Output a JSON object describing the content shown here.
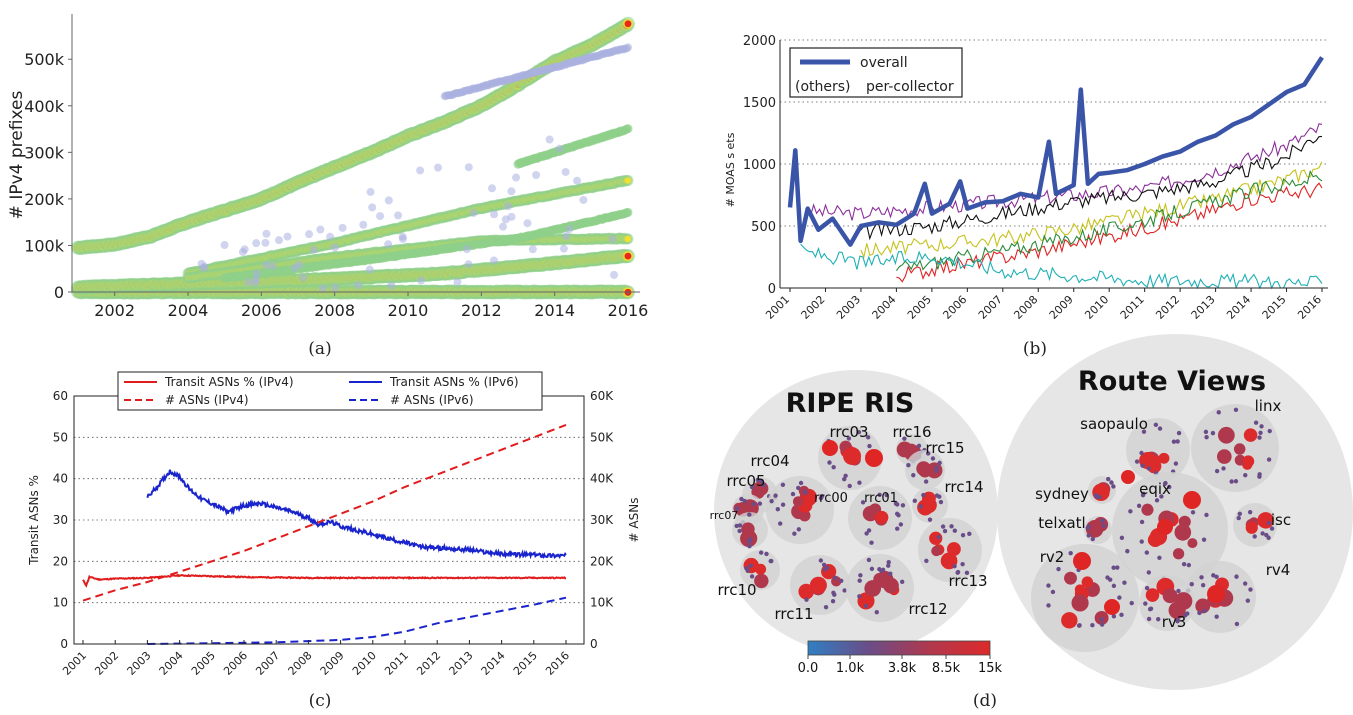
{
  "captions": [
    "(a)",
    "(b)",
    "(c)",
    "(d)"
  ],
  "chart_data": [
    {
      "panel": "(a)",
      "type": "scatter",
      "ylabel": "# IPv4 prefixes",
      "x_ticks": [
        "2002",
        "2004",
        "2006",
        "2008",
        "2010",
        "2012",
        "2014",
        "2016"
      ],
      "y_ticks": [
        "0",
        "100k",
        "200k",
        "300k",
        "400k",
        "500k"
      ],
      "xlim": [
        2001,
        2016
      ],
      "ylim": [
        0,
        580000
      ],
      "colors": {
        "high": "#e8281b",
        "mid": "#f7e02a",
        "low": "#8fd08a",
        "sparse": "#aab0e0"
      },
      "series": [
        {
          "values": [
            [
              2001,
              95000
            ],
            [
              2002,
              102000
            ],
            [
              2003,
              120000
            ],
            [
              2004,
              150000
            ],
            [
              2005,
              175000
            ],
            [
              2006,
              200000
            ],
            [
              2007,
              235000
            ],
            [
              2008,
              268000
            ],
            [
              2009,
              300000
            ],
            [
              2010,
              335000
            ],
            [
              2011,
              365000
            ],
            [
              2012,
              400000
            ],
            [
              2013,
              445000
            ],
            [
              2014,
              495000
            ],
            [
              2015,
              530000
            ],
            [
              2016,
              575000
            ]
          ],
          "density": "high"
        },
        {
          "values": [
            [
              2001,
              0
            ],
            [
              2016,
              0
            ]
          ],
          "density": "high"
        },
        {
          "values": [
            [
              2001,
              10000
            ],
            [
              2004,
              18000
            ],
            [
              2008,
              28000
            ],
            [
              2011,
              40000
            ],
            [
              2014,
              62000
            ],
            [
              2016,
              78000
            ]
          ],
          "density": "high"
        },
        {
          "values": [
            [
              2004,
              40000
            ],
            [
              2008,
              105000
            ],
            [
              2012,
              180000
            ],
            [
              2016,
              240000
            ]
          ],
          "density": "mid"
        },
        {
          "values": [
            [
              2004,
              30000
            ],
            [
              2008,
              75000
            ],
            [
              2012,
              110000
            ],
            [
              2016,
              115000
            ]
          ],
          "density": "mid"
        },
        {
          "values": [
            [
              2005,
              30000
            ],
            [
              2009,
              70000
            ],
            [
              2013,
              115000
            ],
            [
              2016,
              170000
            ]
          ],
          "density": "low"
        },
        {
          "values": [
            [
              2013,
              275000
            ],
            [
              2016,
              350000
            ]
          ],
          "density": "low"
        },
        {
          "values": [
            [
              2011,
              420000
            ],
            [
              2016,
              525000
            ]
          ],
          "density": "sparse"
        }
      ]
    },
    {
      "panel": "(b)",
      "type": "line",
      "ylabel": "# MOAS s ets",
      "x_ticks": [
        "2001",
        "2002",
        "2003",
        "2004",
        "2005",
        "2006",
        "2007",
        "2008",
        "2009",
        "2010",
        "2011",
        "2012",
        "2013",
        "2014",
        "2015",
        "2016"
      ],
      "y_ticks": [
        "0",
        "500",
        "1000",
        "1500",
        "2000"
      ],
      "xlim": [
        2001,
        2016
      ],
      "ylim": [
        0,
        2000
      ],
      "grid": true,
      "legend": {
        "position": "top-left",
        "entries": [
          {
            "key": "",
            "label": "overall"
          },
          {
            "key": "(others)",
            "label": "per-collector"
          }
        ]
      },
      "series": [
        {
          "name": "overall",
          "color": "#3a55a8",
          "values": [
            [
              2001.0,
              650
            ],
            [
              2001.15,
              1110
            ],
            [
              2001.3,
              380
            ],
            [
              2001.5,
              640
            ],
            [
              2001.8,
              470
            ],
            [
              2002.2,
              560
            ],
            [
              2002.7,
              350
            ],
            [
              2003.0,
              500
            ],
            [
              2003.5,
              530
            ],
            [
              2004.0,
              510
            ],
            [
              2004.5,
              600
            ],
            [
              2004.8,
              840
            ],
            [
              2005.0,
              600
            ],
            [
              2005.5,
              680
            ],
            [
              2005.8,
              860
            ],
            [
              2006.0,
              640
            ],
            [
              2006.5,
              690
            ],
            [
              2007.0,
              700
            ],
            [
              2007.5,
              760
            ],
            [
              2008.0,
              730
            ],
            [
              2008.3,
              1180
            ],
            [
              2008.5,
              760
            ],
            [
              2009.0,
              830
            ],
            [
              2009.2,
              1600
            ],
            [
              2009.4,
              840
            ],
            [
              2009.7,
              920
            ],
            [
              2010.0,
              930
            ],
            [
              2010.5,
              950
            ],
            [
              2011.0,
              1000
            ],
            [
              2011.5,
              1060
            ],
            [
              2012.0,
              1100
            ],
            [
              2012.5,
              1180
            ],
            [
              2013.0,
              1230
            ],
            [
              2013.5,
              1320
            ],
            [
              2014.0,
              1380
            ],
            [
              2014.5,
              1480
            ],
            [
              2015.0,
              1580
            ],
            [
              2015.5,
              1640
            ],
            [
              2016.0,
              1860
            ]
          ]
        },
        {
          "color": "#8b2f9a",
          "values": [
            [
              2001.5,
              620
            ],
            [
              2003,
              600
            ],
            [
              2005,
              650
            ],
            [
              2007,
              700
            ],
            [
              2009,
              750
            ],
            [
              2011,
              800
            ],
            [
              2013,
              950
            ],
            [
              2015,
              1150
            ],
            [
              2016,
              1300
            ]
          ]
        },
        {
          "color": "#111111",
          "values": [
            [
              2003,
              450
            ],
            [
              2005,
              500
            ],
            [
              2007,
              600
            ],
            [
              2009,
              700
            ],
            [
              2011,
              760
            ],
            [
              2013,
              860
            ],
            [
              2015,
              1060
            ],
            [
              2016,
              1260
            ]
          ]
        },
        {
          "color": "#c6c21c",
          "values": [
            [
              2003,
              300
            ],
            [
              2005,
              350
            ],
            [
              2007,
              400
            ],
            [
              2009,
              480
            ],
            [
              2011,
              600
            ],
            [
              2013,
              720
            ],
            [
              2015,
              880
            ],
            [
              2016,
              980
            ]
          ]
        },
        {
          "color": "#e02222",
          "values": [
            [
              2004,
              100
            ],
            [
              2006,
              200
            ],
            [
              2008,
              300
            ],
            [
              2010,
              420
            ],
            [
              2012,
              550
            ],
            [
              2014,
              720
            ],
            [
              2016,
              800
            ]
          ]
        },
        {
          "color": "#2a8a3a",
          "values": [
            [
              2004,
              150
            ],
            [
              2006,
              250
            ],
            [
              2008,
              350
            ],
            [
              2010,
              470
            ],
            [
              2012,
              620
            ],
            [
              2014,
              780
            ],
            [
              2016,
              900
            ]
          ]
        },
        {
          "color": "#1fb0b5",
          "values": [
            [
              2001.3,
              300
            ],
            [
              2003,
              200
            ],
            [
              2005,
              260
            ],
            [
              2007,
              140
            ],
            [
              2009,
              100
            ],
            [
              2011,
              60
            ],
            [
              2013,
              60
            ],
            [
              2015,
              40
            ],
            [
              2016,
              40
            ]
          ]
        }
      ]
    },
    {
      "panel": "(c)",
      "type": "line",
      "ylabel": "Transit ASNs %",
      "y2label": "# ASNs",
      "x_ticks": [
        "2001",
        "2002",
        "2003",
        "2004",
        "2005",
        "2006",
        "2007",
        "2008",
        "2009",
        "2010",
        "2011",
        "2012",
        "2013",
        "2014",
        "2015",
        "2016"
      ],
      "y_ticks": [
        "0",
        "10",
        "20",
        "30",
        "40",
        "50",
        "60"
      ],
      "y2_ticks": [
        "0",
        "10K",
        "20K",
        "30K",
        "40K",
        "50K",
        "60K"
      ],
      "xlim": [
        2001,
        2016
      ],
      "ylim": [
        0,
        60
      ],
      "y2lim": [
        0,
        60000
      ],
      "grid": true,
      "legend": {
        "position": "top",
        "entries": [
          "Transit ASNs % (IPv4)",
          "Transit ASNs % (IPv6)",
          "# ASNs (IPv4)",
          "# ASNs (IPv6)"
        ]
      },
      "series": [
        {
          "name": "Transit ASNs % (IPv4)",
          "color": "#e01c1c",
          "style": "solid",
          "axis": "left",
          "values": [
            [
              2001.0,
              15.5
            ],
            [
              2001.1,
              14.2
            ],
            [
              2001.2,
              16.2
            ],
            [
              2001.5,
              15.6
            ],
            [
              2002,
              15.8
            ],
            [
              2003,
              16.0
            ],
            [
              2004,
              16.6
            ],
            [
              2005,
              16.4
            ],
            [
              2006,
              16.2
            ],
            [
              2007,
              16.1
            ],
            [
              2008,
              16.0
            ],
            [
              2009,
              16.0
            ],
            [
              2010,
              16.0
            ],
            [
              2011,
              16.0
            ],
            [
              2012,
              16.0
            ],
            [
              2013,
              16.0
            ],
            [
              2014,
              16.0
            ],
            [
              2015,
              16.0
            ],
            [
              2016,
              16.0
            ]
          ]
        },
        {
          "name": "Transit ASNs % (IPv6)",
          "color": "#1a24cc",
          "style": "solid",
          "axis": "left",
          "values": [
            [
              2003.0,
              35.5
            ],
            [
              2003.3,
              38
            ],
            [
              2003.7,
              41.8
            ],
            [
              2004.0,
              40.5
            ],
            [
              2004.3,
              37.5
            ],
            [
              2004.7,
              35
            ],
            [
              2005.0,
              34
            ],
            [
              2005.5,
              32
            ],
            [
              2006.0,
              33.5
            ],
            [
              2006.5,
              34
            ],
            [
              2007.0,
              33
            ],
            [
              2007.5,
              32
            ],
            [
              2008.0,
              30.5
            ],
            [
              2008.3,
              29
            ],
            [
              2008.7,
              29.5
            ],
            [
              2009.0,
              28.5
            ],
            [
              2009.5,
              27.5
            ],
            [
              2010.0,
              26.5
            ],
            [
              2010.5,
              25.5
            ],
            [
              2011.0,
              24.5
            ],
            [
              2011.5,
              23.5
            ],
            [
              2012.0,
              23.3
            ],
            [
              2012.5,
              23.0
            ],
            [
              2013.0,
              22.8
            ],
            [
              2013.5,
              22.2
            ],
            [
              2014.0,
              21.8
            ],
            [
              2014.5,
              21.6
            ],
            [
              2015.0,
              21.6
            ],
            [
              2015.5,
              21.4
            ],
            [
              2016.0,
              21.4
            ]
          ]
        },
        {
          "name": "# ASNs (IPv4)",
          "color": "#e01c1c",
          "style": "dashed",
          "axis": "right",
          "values": [
            [
              2001,
              10500
            ],
            [
              2002,
              13000
            ],
            [
              2003,
              15000
            ],
            [
              2004,
              17500
            ],
            [
              2005,
              20000
            ],
            [
              2006,
              22500
            ],
            [
              2007,
              25500
            ],
            [
              2008,
              28500
            ],
            [
              2009,
              31500
            ],
            [
              2010,
              34500
            ],
            [
              2011,
              38000
            ],
            [
              2012,
              41000
            ],
            [
              2013,
              44000
            ],
            [
              2014,
              47000
            ],
            [
              2015,
              50000
            ],
            [
              2016,
              53000
            ]
          ]
        },
        {
          "name": "# ASNs (IPv6)",
          "color": "#1a24cc",
          "style": "dashed",
          "axis": "right",
          "values": [
            [
              2003,
              0
            ],
            [
              2005,
              200
            ],
            [
              2007,
              400
            ],
            [
              2008,
              700
            ],
            [
              2009,
              1000
            ],
            [
              2010,
              1700
            ],
            [
              2011,
              3000
            ],
            [
              2012,
              5000
            ],
            [
              2013,
              6500
            ],
            [
              2014,
              8000
            ],
            [
              2015,
              9500
            ],
            [
              2016,
              11200
            ]
          ]
        }
      ]
    },
    {
      "panel": "(d)",
      "type": "diagram",
      "colorbar": {
        "ticks": [
          "0.0",
          "1.0k",
          "3.8k",
          "8.5k",
          "15k"
        ],
        "colors": [
          "#2f7fc4",
          "#6a4d88",
          "#b0384d",
          "#dd2a2a"
        ]
      },
      "groups": [
        {
          "title": "RIPE RIS",
          "labels": [
            "rrc03",
            "rrc16",
            "rrc15",
            "rrc04",
            "rrc05",
            "rrc00",
            "rrc01",
            "rrc14",
            "rrc07",
            "rrc10",
            "rrc11",
            "rrc12",
            "rrc13"
          ]
        },
        {
          "title": "Route Views",
          "labels": [
            "linx",
            "saopaulo",
            "sydney",
            "eqix",
            "telxatl",
            "isc",
            "rv2",
            "rv4",
            "rv3"
          ]
        }
      ]
    }
  ]
}
